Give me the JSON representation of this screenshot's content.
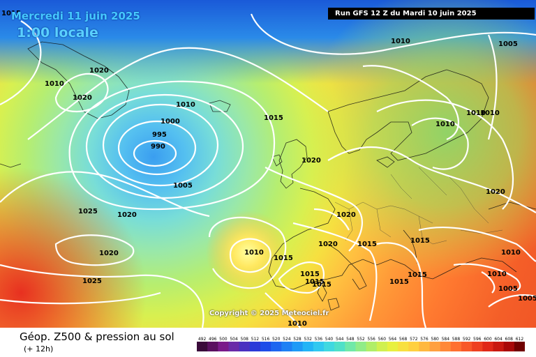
{
  "header": {
    "date": "Mercredi 11 juin 2025",
    "time": "1:00 locale",
    "run": "Run GFS 12 Z du Mardi 10 juin 2025"
  },
  "copyright": "Copyright © 2025 Meteociel.fr",
  "legend": {
    "title": "Géop. Z500 & pression au sol",
    "subtitle": "(+ 12h)",
    "scale_values": [
      "492",
      "496",
      "500",
      "504",
      "508",
      "512",
      "516",
      "520",
      "524",
      "528",
      "532",
      "536",
      "540",
      "544",
      "548",
      "552",
      "556",
      "560",
      "564",
      "568",
      "572",
      "576",
      "580",
      "584",
      "588",
      "592",
      "596",
      "600",
      "604",
      "608",
      "612"
    ],
    "scale_colors": [
      "#3a0a3a",
      "#5a1060",
      "#7a1a8a",
      "#6a2aa8",
      "#4a30c0",
      "#2a3ad8",
      "#1e4ce8",
      "#1e66f0",
      "#1e80f4",
      "#1e9af6",
      "#22b4f6",
      "#30c8f0",
      "#40d8e0",
      "#50e0c8",
      "#70e8a8",
      "#90ec88",
      "#b0ee68",
      "#d0f050",
      "#e8f040",
      "#f8e040",
      "#ffd040",
      "#ffb840",
      "#ffa040",
      "#ff8838",
      "#ff7030",
      "#f85828",
      "#ee4020",
      "#e02818",
      "#c81810",
      "#a80808",
      "#700000"
    ]
  },
  "isobars": [
    {
      "label": "1015",
      "role": "corner"
    },
    {
      "label": "1010",
      "role": "north-pole"
    },
    {
      "label": "1005",
      "role": "north-east"
    },
    {
      "label": "1020",
      "role": "greenland"
    },
    {
      "label": "1010",
      "role": "greenland-west"
    },
    {
      "label": "1020",
      "role": "greenland-south"
    },
    {
      "label": "1010",
      "role": "iceland"
    },
    {
      "label": "1000",
      "role": "low"
    },
    {
      "label": "995",
      "role": "low"
    },
    {
      "label": "990",
      "role": "low-center"
    },
    {
      "label": "1005",
      "role": "low-south"
    },
    {
      "label": "1015",
      "role": "norwegian-sea"
    },
    {
      "label": "1020",
      "role": "britain"
    },
    {
      "label": "1010",
      "role": "scandinavia"
    },
    {
      "label": "1010",
      "role": "finland"
    },
    {
      "label": "1010",
      "role": "russia"
    },
    {
      "label": "1020",
      "role": "east"
    },
    {
      "label": "1025",
      "role": "atlantic"
    },
    {
      "label": "1020",
      "role": "atlantic"
    },
    {
      "label": "1020",
      "role": "atlantic-south"
    },
    {
      "label": "1025",
      "role": "atlantic-south"
    },
    {
      "label": "1010",
      "role": "portugal-low"
    },
    {
      "label": "1015",
      "role": "iberia"
    },
    {
      "label": "1020",
      "role": "france"
    },
    {
      "label": "1020",
      "role": "alps"
    },
    {
      "label": "1015",
      "role": "italy"
    },
    {
      "label": "1015",
      "role": "balkans"
    },
    {
      "label": "1015",
      "role": "mediterranean"
    },
    {
      "label": "1015",
      "role": "spain-east"
    },
    {
      "label": "1015",
      "role": "sardinia"
    },
    {
      "label": "1015",
      "role": "greece"
    },
    {
      "label": "1015",
      "role": "black-sea"
    },
    {
      "label": "1010",
      "role": "turkey"
    },
    {
      "label": "1010",
      "role": "turkey-east"
    },
    {
      "label": "1005",
      "role": "middle-east"
    },
    {
      "label": "1005",
      "role": "middle-east-south"
    },
    {
      "label": "1010",
      "role": "north-africa"
    }
  ]
}
